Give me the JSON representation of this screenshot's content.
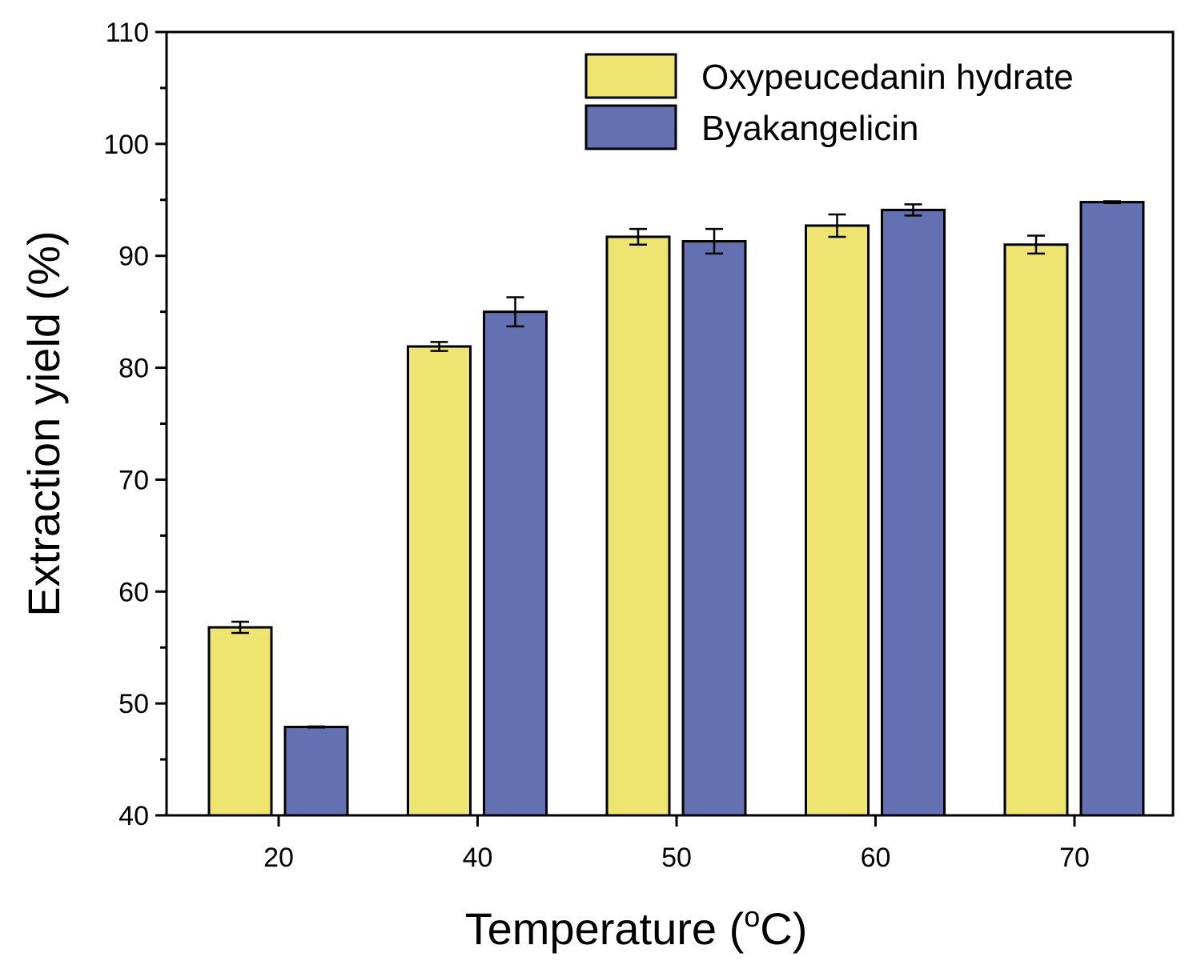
{
  "chart_data": {
    "type": "bar",
    "title": "",
    "xlabel": "Temperature (",
    "xlabel_sup": "o",
    "xlabel_suffix": "C)",
    "ylabel": "Extraction yield (%)",
    "categories": [
      "20",
      "40",
      "50",
      "60",
      "70"
    ],
    "ylim": [
      40,
      110
    ],
    "yticks": [
      40,
      50,
      60,
      70,
      80,
      90,
      100,
      110
    ],
    "grid": false,
    "legend_position": "top-right",
    "series": [
      {
        "name": "Oxypeucedanin hydrate",
        "color": "#EDE56F",
        "values": [
          56.8,
          81.9,
          91.7,
          92.7,
          91.0
        ],
        "errors": [
          0.5,
          0.4,
          0.7,
          1.0,
          0.8
        ]
      },
      {
        "name": "Byakangelicin",
        "color": "#6370B1",
        "values": [
          47.9,
          85.0,
          91.3,
          94.1,
          94.8
        ],
        "errors": [
          0.05,
          1.3,
          1.1,
          0.5,
          0.08
        ]
      }
    ]
  }
}
